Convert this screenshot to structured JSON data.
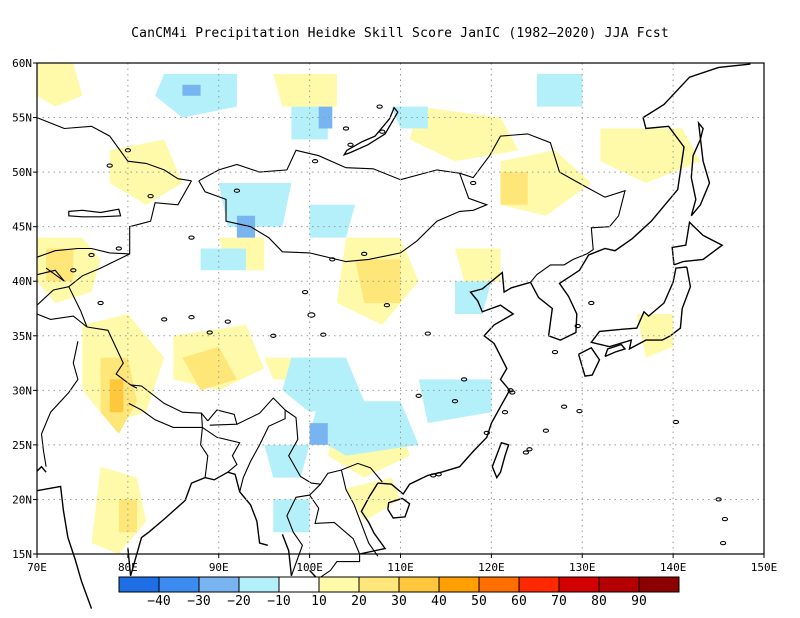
{
  "title": "CanCM4i  Precipitation Heidke Skill Score JanIC (1982–2020) JJA Fcst",
  "map": {
    "lon_range": [
      70,
      150
    ],
    "lat_range": [
      15,
      60
    ],
    "lon_ticks": [
      "70E",
      "80E",
      "90E",
      "100E",
      "110E",
      "120E",
      "130E",
      "140E",
      "150E"
    ],
    "lat_ticks": [
      "15N",
      "20N",
      "25N",
      "30N",
      "35N",
      "40N",
      "45N",
      "50N",
      "55N",
      "60N"
    ],
    "grid": true,
    "ocean_color": "#ffffff",
    "coast_color": "#000000"
  },
  "colorbar": {
    "colors": [
      "#1e6ee6",
      "#3c8cf0",
      "#78b4f0",
      "#b4f0fa",
      "#ffffff",
      "#fffaaa",
      "#ffe678",
      "#ffc83c",
      "#ffa000",
      "#ff6e00",
      "#ff2800",
      "#d20000",
      "#b40000",
      "#8c0000"
    ],
    "labels": [
      "−40",
      "−30",
      "−20",
      "−10",
      "10",
      "20",
      "30",
      "40",
      "50",
      "60",
      "70",
      "80",
      "90"
    ]
  }
}
